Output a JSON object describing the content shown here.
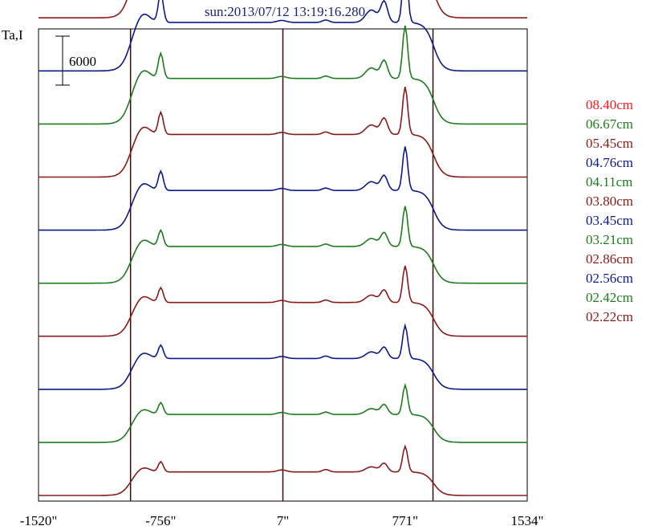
{
  "chart_data": {
    "type": "line",
    "title": "sun:2013/07/12 13:19:16.280",
    "ylabel": "Ta,I",
    "xlabel": "",
    "scale_bar": {
      "label": "6000",
      "value": 6000
    },
    "xlim": [
      -1520,
      1534
    ],
    "x_ticks": [
      {
        "value": -1520,
        "label": "-1520\""
      },
      {
        "value": -756,
        "label": "-756\""
      },
      {
        "value": 7,
        "label": "7\""
      },
      {
        "value": 771,
        "label": "771\""
      },
      {
        "value": 1534,
        "label": "1534\""
      }
    ],
    "vertical_markers": [
      -945,
      7,
      945
    ],
    "grid": false,
    "legend_position": "right",
    "offset_between_series": 6500,
    "series": [
      {
        "name": "02.22cm",
        "color": "#8b1a1a",
        "offset": 0,
        "scale": 0.32,
        "left_peak": 0.14,
        "right_peak": 0.35
      },
      {
        "name": "02.42cm",
        "color": "#1e7b1e",
        "offset": 6500,
        "scale": 0.38,
        "left_peak": 0.16,
        "right_peak": 0.4
      },
      {
        "name": "02.56cm",
        "color": "#0d1a8c",
        "offset": 13000,
        "scale": 0.42,
        "left_peak": 0.18,
        "right_peak": 0.45
      },
      {
        "name": "02.86cm",
        "color": "#8b1a1a",
        "offset": 19500,
        "scale": 0.46,
        "left_peak": 0.2,
        "right_peak": 0.5
      },
      {
        "name": "03.21cm",
        "color": "#1e7b1e",
        "offset": 26000,
        "scale": 0.5,
        "left_peak": 0.22,
        "right_peak": 0.55
      },
      {
        "name": "03.45cm",
        "color": "#0d1a8c",
        "offset": 32500,
        "scale": 0.54,
        "left_peak": 0.26,
        "right_peak": 0.6
      },
      {
        "name": "03.80cm",
        "color": "#8b1a1a",
        "offset": 39000,
        "scale": 0.58,
        "left_peak": 0.3,
        "right_peak": 0.65
      },
      {
        "name": "04.11cm",
        "color": "#1e7b1e",
        "offset": 45500,
        "scale": 0.62,
        "left_peak": 0.34,
        "right_peak": 0.72
      },
      {
        "name": "04.76cm",
        "color": "#0d1a8c",
        "offset": 52000,
        "scale": 0.66,
        "left_peak": 0.4,
        "right_peak": 0.85
      },
      {
        "name": "05.45cm",
        "color": "#8b1a1a",
        "offset": 58500,
        "scale": 0.7,
        "left_peak": 0.45,
        "right_peak": 1.0
      },
      {
        "name": "06.67cm",
        "color": "#1e7b1e",
        "offset": 65000,
        "scale": 0.74,
        "left_peak": 0.5,
        "right_peak": 1.25
      },
      {
        "name": "08.40cm",
        "color": "#ff1a1a",
        "offset": 71500,
        "scale": 0.78,
        "left_peak": 0.55,
        "right_peak": 1.55
      }
    ],
    "legend_order": [
      "08.40cm",
      "06.67cm",
      "05.45cm",
      "04.76cm",
      "04.11cm",
      "03.80cm",
      "03.45cm",
      "03.21cm",
      "02.86cm",
      "02.56cm",
      "02.42cm",
      "02.22cm"
    ]
  }
}
